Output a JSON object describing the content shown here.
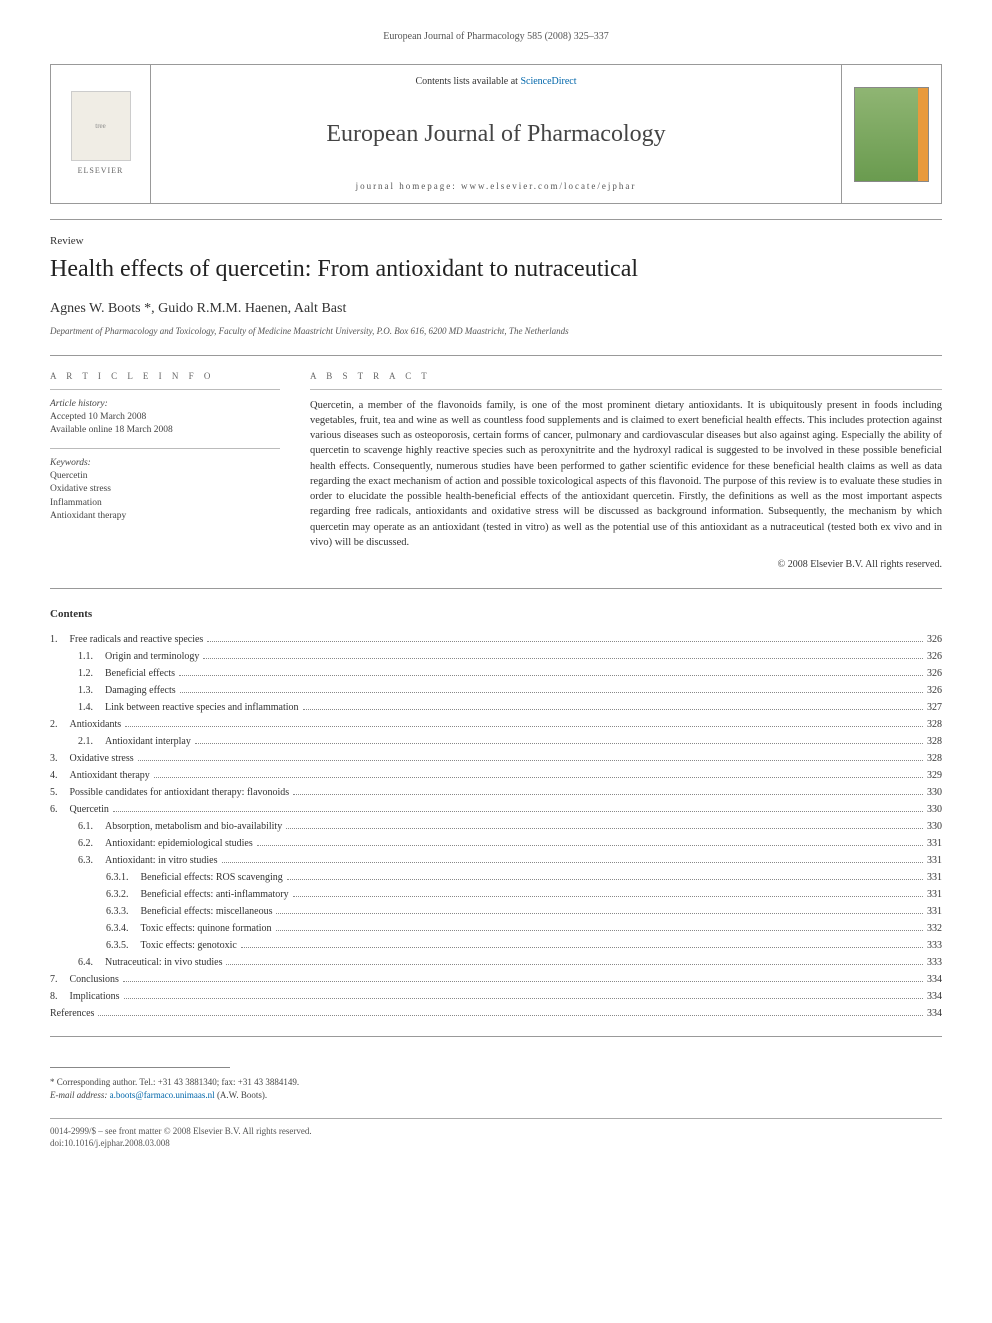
{
  "running_head": "European Journal of Pharmacology 585 (2008) 325–337",
  "header": {
    "publisher": "ELSEVIER",
    "contents_prefix": "Contents lists available at ",
    "contents_link": "ScienceDirect",
    "journal_name": "European Journal of Pharmacology",
    "homepage_prefix": "journal homepage: ",
    "homepage": "www.elsevier.com/locate/ejphar"
  },
  "article": {
    "type_label": "Review",
    "title": "Health effects of quercetin: From antioxidant to nutraceutical",
    "authors": "Agnes W. Boots *, Guido R.M.M. Haenen, Aalt Bast",
    "affiliation": "Department of Pharmacology and Toxicology, Faculty of Medicine Maastricht University, P.O. Box 616, 6200 MD Maastricht, The Netherlands"
  },
  "info": {
    "heading": "A R T I C L E   I N F O",
    "history_label": "Article history:",
    "accepted": "Accepted 10 March 2008",
    "available": "Available online 18 March 2008",
    "keywords_label": "Keywords:",
    "keywords": [
      "Quercetin",
      "Oxidative stress",
      "Inflammation",
      "Antioxidant therapy"
    ]
  },
  "abstract": {
    "heading": "A B S T R A C T",
    "text": "Quercetin, a member of the flavonoids family, is one of the most prominent dietary antioxidants. It is ubiquitously present in foods including vegetables, fruit, tea and wine as well as countless food supplements and is claimed to exert beneficial health effects. This includes protection against various diseases such as osteoporosis, certain forms of cancer, pulmonary and cardiovascular diseases but also against aging. Especially the ability of quercetin to scavenge highly reactive species such as peroxynitrite and the hydroxyl radical is suggested to be involved in these possible beneficial health effects. Consequently, numerous studies have been performed to gather scientific evidence for these beneficial health claims as well as data regarding the exact mechanism of action and possible toxicological aspects of this flavonoid. The purpose of this review is to evaluate these studies in order to elucidate the possible health-beneficial effects of the antioxidant quercetin. Firstly, the definitions as well as the most important aspects regarding free radicals, antioxidants and oxidative stress will be discussed as background information. Subsequently, the mechanism by which quercetin may operate as an antioxidant (tested in vitro) as well as the potential use of this antioxidant as a nutraceutical (tested both ex vivo and in vivo) will be discussed.",
    "copyright": "© 2008 Elsevier B.V. All rights reserved."
  },
  "contents": {
    "heading": "Contents",
    "rows": [
      {
        "indent": 0,
        "num": "1.",
        "title": "Free radicals and reactive species",
        "page": "326"
      },
      {
        "indent": 1,
        "num": "1.1.",
        "title": "Origin and terminology",
        "page": "326"
      },
      {
        "indent": 1,
        "num": "1.2.",
        "title": "Beneficial effects",
        "page": "326"
      },
      {
        "indent": 1,
        "num": "1.3.",
        "title": "Damaging effects",
        "page": "326"
      },
      {
        "indent": 1,
        "num": "1.4.",
        "title": "Link between reactive species and inflammation",
        "page": "327"
      },
      {
        "indent": 0,
        "num": "2.",
        "title": "Antioxidants",
        "page": "328"
      },
      {
        "indent": 1,
        "num": "2.1.",
        "title": "Antioxidant interplay",
        "page": "328"
      },
      {
        "indent": 0,
        "num": "3.",
        "title": "Oxidative stress",
        "page": "328"
      },
      {
        "indent": 0,
        "num": "4.",
        "title": "Antioxidant therapy",
        "page": "329"
      },
      {
        "indent": 0,
        "num": "5.",
        "title": "Possible candidates for antioxidant therapy: flavonoids",
        "page": "330"
      },
      {
        "indent": 0,
        "num": "6.",
        "title": "Quercetin",
        "page": "330"
      },
      {
        "indent": 1,
        "num": "6.1.",
        "title": "Absorption, metabolism and bio-availability",
        "page": "330"
      },
      {
        "indent": 1,
        "num": "6.2.",
        "title": "Antioxidant: epidemiological studies",
        "page": "331"
      },
      {
        "indent": 1,
        "num": "6.3.",
        "title": "Antioxidant: in vitro studies",
        "page": "331"
      },
      {
        "indent": 2,
        "num": "6.3.1.",
        "title": "Beneficial effects: ROS scavenging",
        "page": "331"
      },
      {
        "indent": 2,
        "num": "6.3.2.",
        "title": "Beneficial effects: anti-inflammatory",
        "page": "331"
      },
      {
        "indent": 2,
        "num": "6.3.3.",
        "title": "Beneficial effects: miscellaneous",
        "page": "331"
      },
      {
        "indent": 2,
        "num": "6.3.4.",
        "title": "Toxic effects: quinone formation",
        "page": "332"
      },
      {
        "indent": 2,
        "num": "6.3.5.",
        "title": "Toxic effects: genotoxic",
        "page": "333"
      },
      {
        "indent": 1,
        "num": "6.4.",
        "title": "Nutraceutical: in vivo studies",
        "page": "333"
      },
      {
        "indent": 0,
        "num": "7.",
        "title": "Conclusions",
        "page": "334"
      },
      {
        "indent": 0,
        "num": "8.",
        "title": "Implications",
        "page": "334"
      },
      {
        "indent": 0,
        "num": "",
        "title": "References",
        "page": "334"
      }
    ]
  },
  "footnote": {
    "star_text": "* Corresponding author. Tel.: +31 43 3881340; fax: +31 43 3884149.",
    "email_label": "E-mail address:",
    "email": "a.boots@farmaco.unimaas.nl",
    "email_suffix": "(A.W. Boots)."
  },
  "footer": {
    "line1": "0014-2999/$ – see front matter © 2008 Elsevier B.V. All rights reserved.",
    "line2": "doi:10.1016/j.ejphar.2008.03.008"
  },
  "colors": {
    "text": "#333333",
    "link": "#0066aa",
    "rule": "#999999",
    "cover_green_top": "#8fb573",
    "cover_green_bottom": "#6a9b4f",
    "cover_orange": "#e89a3c"
  }
}
